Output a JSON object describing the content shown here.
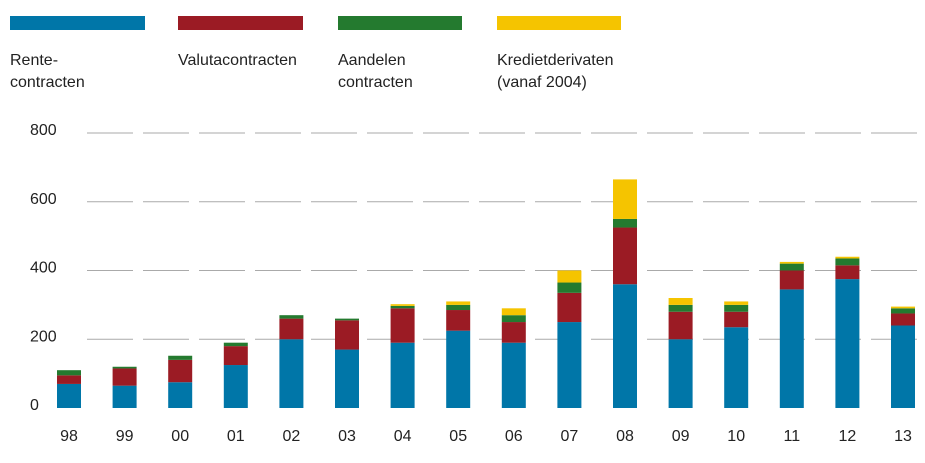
{
  "chart_data": {
    "type": "stacked_bar",
    "categories": [
      "98",
      "99",
      "00",
      "01",
      "02",
      "03",
      "04",
      "05",
      "06",
      "07",
      "08",
      "09",
      "10",
      "11",
      "12",
      "13"
    ],
    "series": [
      {
        "name": "Rente-\ncontracten",
        "color": "#0076a8",
        "values": [
          70,
          65,
          75,
          125,
          200,
          170,
          190,
          225,
          190,
          250,
          360,
          200,
          235,
          345,
          375,
          240
        ]
      },
      {
        "name": "Valutacontracten",
        "color": "#9b1b24",
        "values": [
          25,
          50,
          65,
          55,
          60,
          85,
          100,
          60,
          60,
          85,
          165,
          80,
          45,
          55,
          40,
          35
        ]
      },
      {
        "name": "Aandelen\ncontracten",
        "color": "#247a2f",
        "values": [
          15,
          5,
          12,
          10,
          10,
          5,
          7,
          15,
          20,
          30,
          25,
          20,
          20,
          20,
          20,
          15
        ]
      },
      {
        "name": "Kredietderivaten\n(vanaf 2004)",
        "color": "#f5c400",
        "values": [
          null,
          null,
          null,
          null,
          null,
          null,
          5,
          10,
          20,
          35,
          115,
          20,
          10,
          5,
          5,
          5
        ]
      }
    ],
    "ylim": [
      0,
      800
    ],
    "yticks": [
      0,
      200,
      400,
      600,
      800
    ],
    "grid": true
  }
}
